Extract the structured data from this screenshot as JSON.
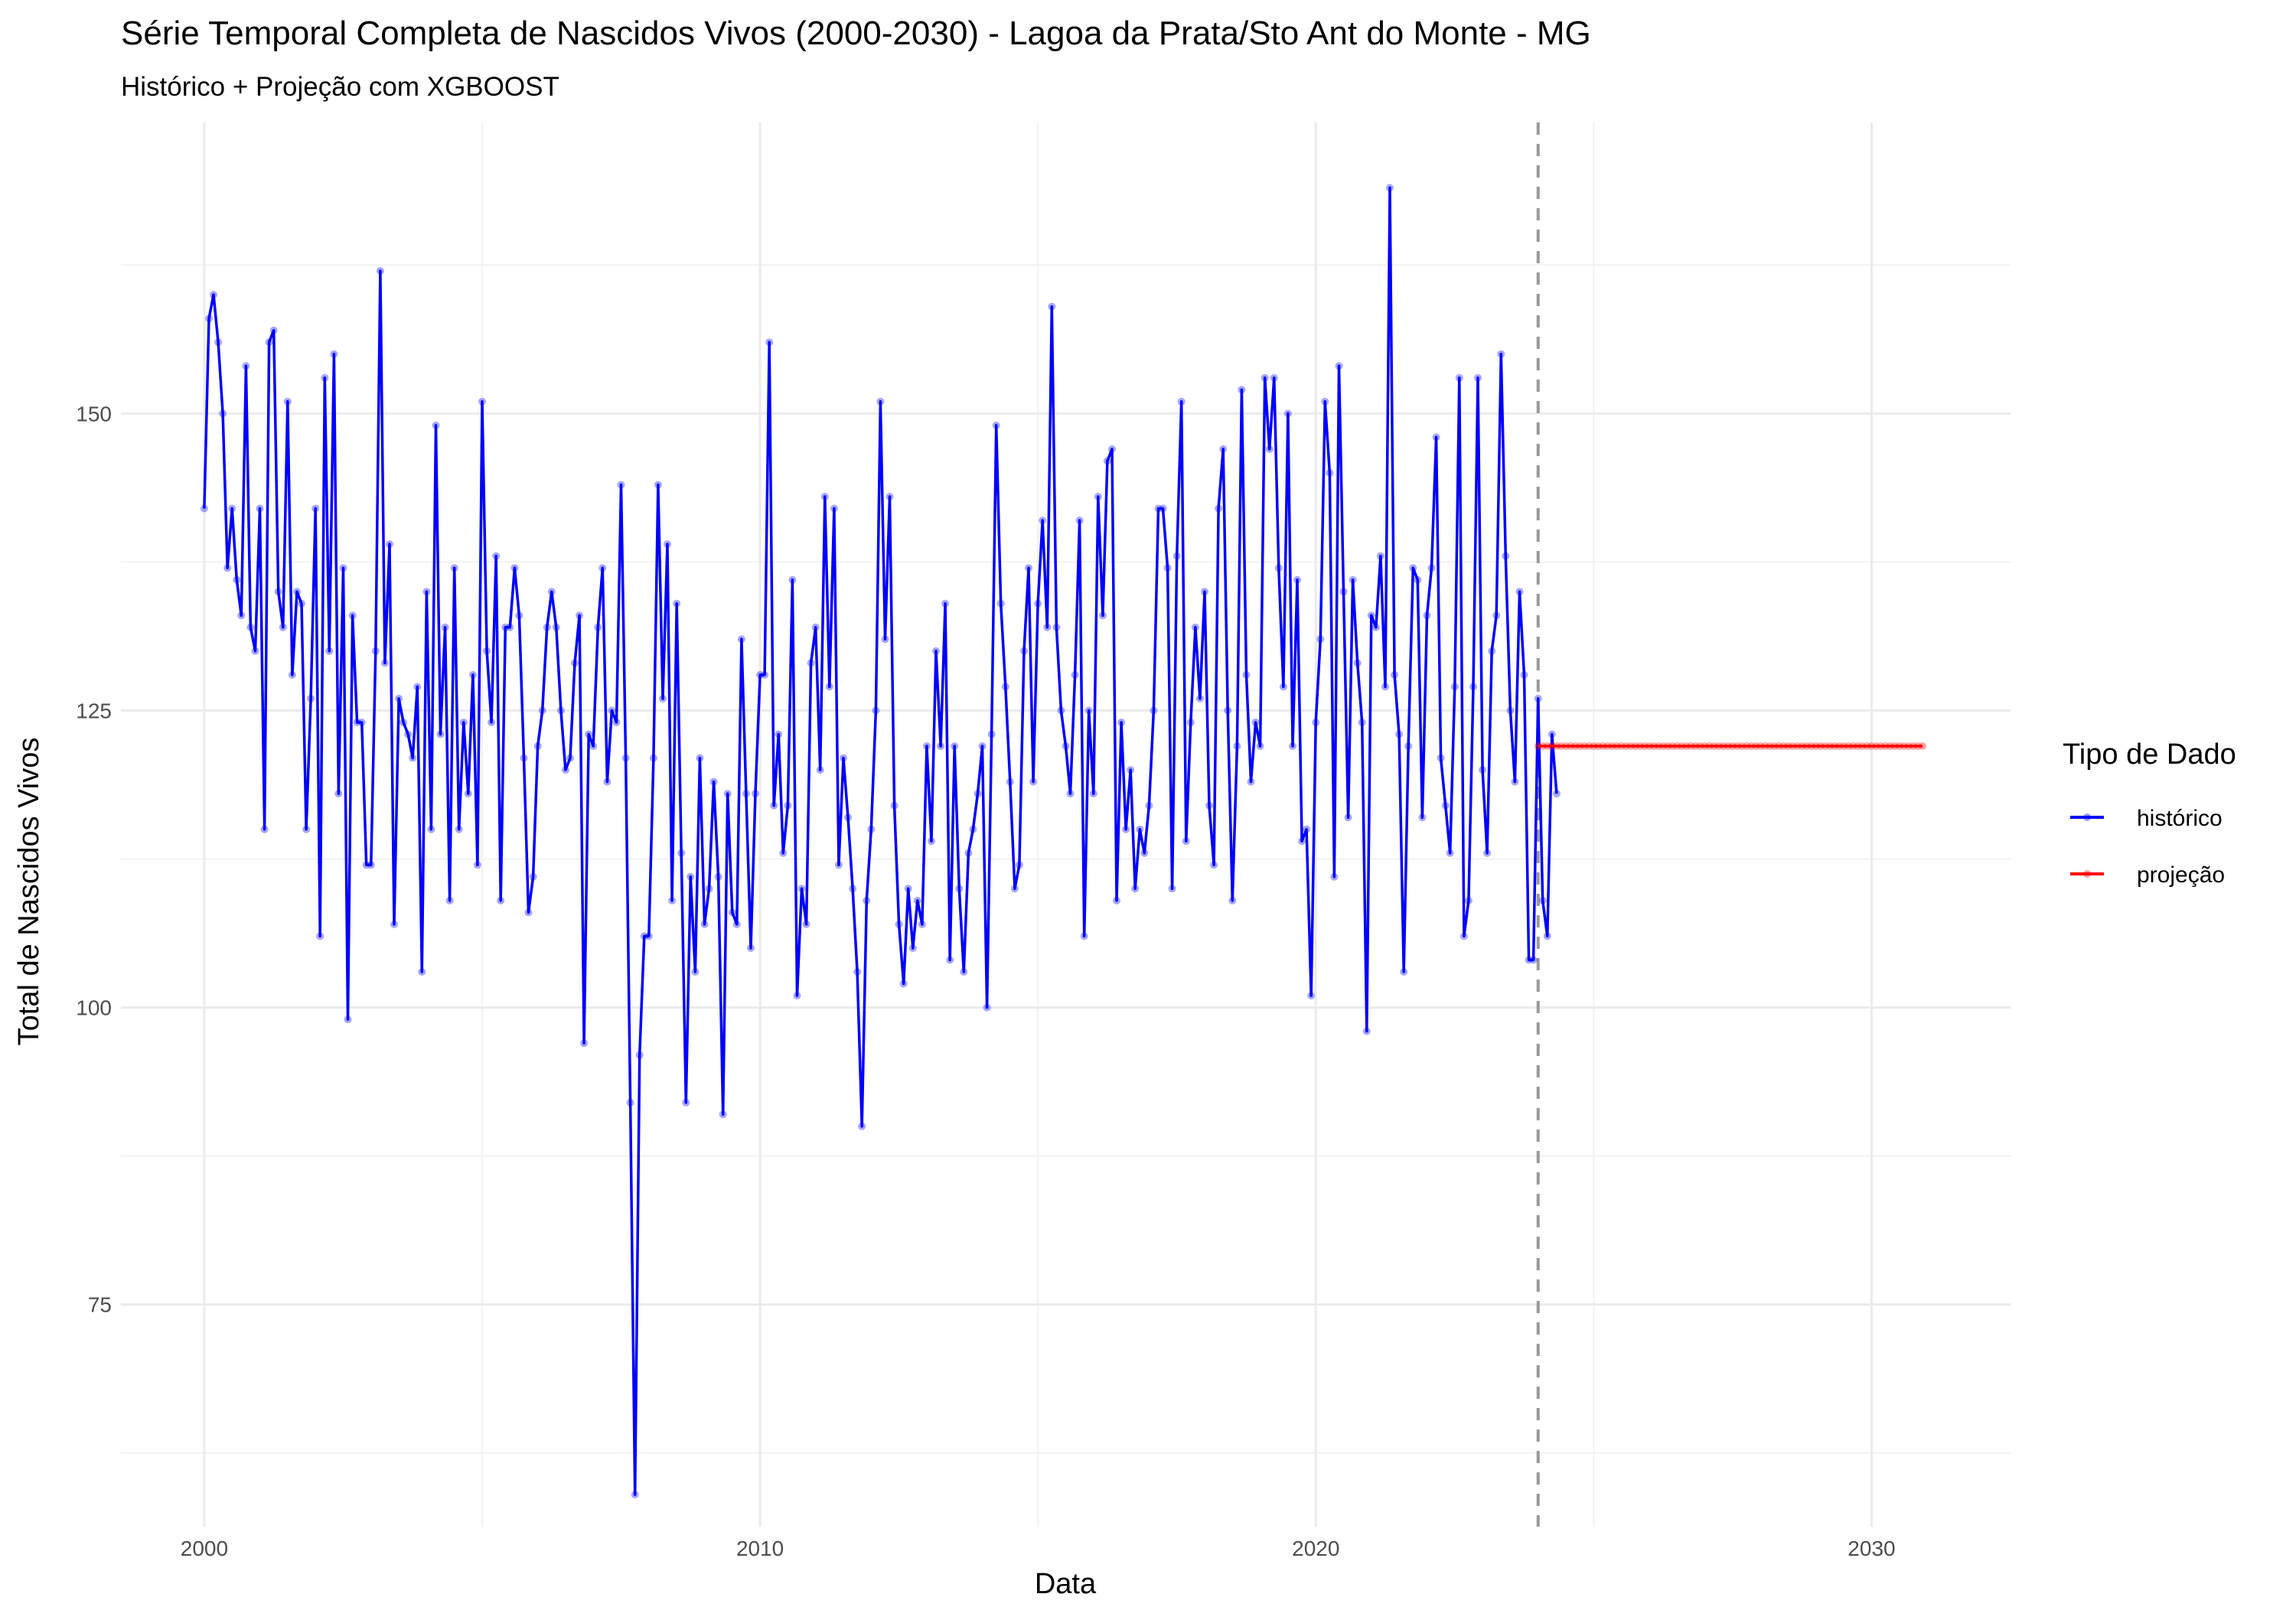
{
  "chart_data": {
    "type": "line",
    "title": "Série Temporal Completa de Nascidos Vivos (2000-2030) -  Lagoa da Prata/Sto Ant do Monte - MG",
    "subtitle": "Histórico + Projeção com XGBOOST",
    "xlabel": "Data",
    "ylabel": "Total de Nascidos Vivos",
    "x_type": "year",
    "xlim": [
      1998.5,
      2032.5
    ],
    "ylim": [
      56.3,
      174.5
    ],
    "x_ticks": [
      2000,
      2010,
      2020,
      2030
    ],
    "x_tick_labels": [
      "2000",
      "2010",
      "2020",
      "2030"
    ],
    "y_ticks": [
      75,
      100,
      125,
      150
    ],
    "y_tick_labels": [
      "75",
      "100",
      "125",
      "150"
    ],
    "grid": true,
    "legend": {
      "title": "Tipo de Dado",
      "position": "right"
    },
    "vline": {
      "x": 2024.0,
      "style": "dashed",
      "color": "#999999"
    },
    "series": [
      {
        "name": "histórico",
        "color": "#0000ff",
        "start": 2000.0,
        "step": 0.08333,
        "values": [
          142,
          158,
          160,
          156,
          150,
          137,
          142,
          136,
          133,
          154,
          132,
          130,
          142,
          115,
          156,
          157,
          135,
          132,
          151,
          128,
          135,
          134,
          115,
          126,
          142,
          106,
          153,
          130,
          155,
          118,
          137,
          99,
          133,
          124,
          124,
          112,
          112,
          130,
          162,
          129,
          139,
          107,
          126,
          124,
          123,
          121,
          127,
          103,
          135,
          115,
          149,
          123,
          132,
          109,
          137,
          115,
          124,
          118,
          128,
          112,
          151,
          130,
          124,
          138,
          109,
          132,
          132,
          137,
          133,
          121,
          108,
          111,
          122,
          125,
          132,
          135,
          132,
          125,
          120,
          121,
          129,
          133,
          97,
          123,
          122,
          132,
          137,
          119,
          125,
          124,
          144,
          121,
          92,
          59,
          96,
          106,
          106,
          121,
          144,
          126,
          139,
          109,
          134,
          113,
          92,
          111,
          103,
          121,
          107,
          110,
          119,
          111,
          91,
          118,
          108,
          107,
          131,
          118,
          105,
          118,
          128,
          128,
          156,
          117,
          123,
          113,
          117,
          136,
          101,
          110,
          107,
          129,
          132,
          120,
          143,
          127,
          142,
          112,
          121,
          116,
          110,
          103,
          90,
          109,
          115,
          125,
          151,
          131,
          143,
          117,
          107,
          102,
          110,
          105,
          109,
          107,
          122,
          114,
          130,
          122,
          134,
          104,
          122,
          110,
          103,
          113,
          115,
          118,
          122,
          100,
          123,
          149,
          134,
          127,
          119,
          110,
          112,
          130,
          137,
          119,
          134,
          141,
          132,
          159,
          132,
          125,
          122,
          118,
          128,
          141,
          106,
          125,
          118,
          143,
          133,
          146,
          147,
          109,
          124,
          115,
          120,
          110,
          115,
          113,
          117,
          125,
          142,
          142,
          137,
          110,
          138,
          151,
          114,
          124,
          132,
          126,
          135,
          117,
          112,
          142,
          147,
          125,
          109,
          122,
          152,
          128,
          119,
          124,
          122,
          153,
          147,
          153,
          137,
          127,
          150,
          122,
          136,
          114,
          115,
          101,
          124,
          131,
          151,
          145,
          111,
          154,
          135,
          116,
          136,
          129,
          124,
          98,
          133,
          132,
          138,
          127,
          169,
          128,
          123,
          103,
          122,
          137,
          136,
          116,
          133,
          137,
          148,
          121,
          117,
          113,
          127,
          153,
          106,
          109,
          127,
          153,
          120,
          113,
          130,
          133,
          155,
          138,
          125,
          119,
          135,
          128,
          104,
          104,
          126,
          109,
          106,
          123,
          118
        ]
      },
      {
        "name": "projeção",
        "color": "#ff0000",
        "start": 2024.0,
        "step": 0.08333,
        "count": 84,
        "value": 122
      }
    ]
  }
}
